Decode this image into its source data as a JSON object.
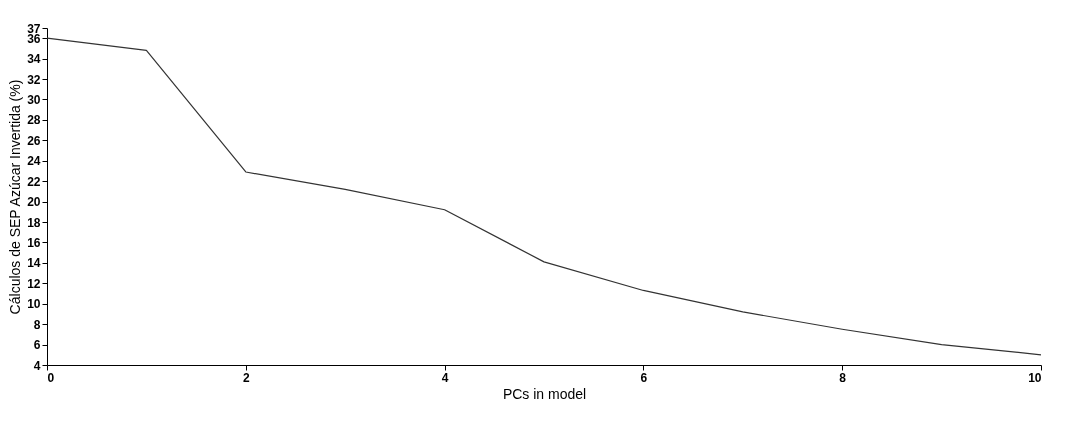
{
  "chart_data": {
    "type": "line",
    "xlabel": "PCs in model",
    "ylabel": "Cálculos de SEP Azúcar Invertida (%)",
    "x": [
      0,
      1,
      2,
      3,
      4,
      5,
      6,
      7,
      8,
      9,
      10
    ],
    "series": [
      {
        "color": "#333333",
        "values": [
          36.0,
          34.8,
          22.9,
          21.2,
          19.2,
          14.1,
          11.3,
          9.2,
          7.5,
          6.0,
          5.0
        ]
      }
    ],
    "xlim": [
      0,
      10
    ],
    "xticks": [
      0,
      2,
      4,
      6,
      8,
      10
    ],
    "ylim": [
      4,
      37
    ],
    "yticks": [
      4,
      6,
      8,
      10,
      12,
      14,
      16,
      18,
      20,
      22,
      24,
      26,
      28,
      30,
      32,
      34,
      36,
      37
    ],
    "grid": false,
    "legend": false,
    "marker": "none",
    "line_style": "solid"
  }
}
